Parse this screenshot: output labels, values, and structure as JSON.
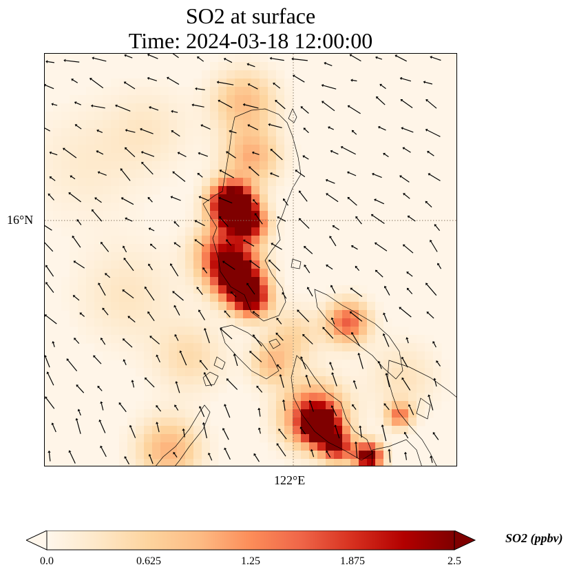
{
  "title": {
    "line1": "SO2 at surface",
    "line2": "Time: 2024-03-18 12:00:00"
  },
  "axes": {
    "lat_tick": "16°N",
    "lon_tick": "122°E"
  },
  "colorbar": {
    "label": "SO2 (ppbv)",
    "ticks": [
      "0.0",
      "0.625",
      "1.25",
      "1.875",
      "2.5"
    ],
    "min": 0.0,
    "max": 2.5,
    "extend": "both",
    "colormap": "OrRd",
    "colors": [
      "#fff7ec",
      "#fee8c8",
      "#fdd49e",
      "#fdbb84",
      "#fc8d59",
      "#ef6548",
      "#d7301f",
      "#b30000",
      "#7f0000"
    ]
  },
  "map": {
    "gridlines": "dotted",
    "coastline_color": "#000000",
    "wind_vectors": "black arrows"
  }
}
